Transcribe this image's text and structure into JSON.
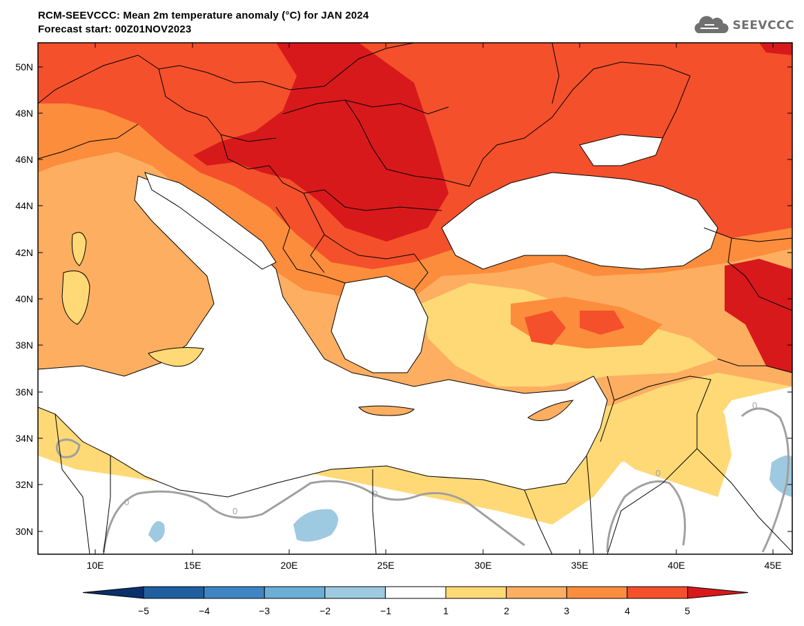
{
  "header": {
    "title": "RCM-SEEVCCC: Mean 2m temperature anomaly (°C) for JAN 2024",
    "subtitle": "Forecast start: 00Z01NOV2023",
    "logo_text": "SEEVCCC"
  },
  "map": {
    "lon_range": [
      7,
      46
    ],
    "lat_range": [
      29,
      51
    ],
    "lat_ticks": [
      "50N",
      "48N",
      "46N",
      "44N",
      "42N",
      "40N",
      "38N",
      "36N",
      "34N",
      "32N",
      "30N"
    ],
    "lon_ticks": [
      "10E",
      "15E",
      "20E",
      "25E",
      "30E",
      "35E",
      "40E",
      "45E"
    ],
    "contour_labels": [
      "0",
      "0",
      "0",
      "0",
      "0"
    ],
    "sea_color": "#ffffff",
    "border_color": "#000000",
    "zero_contour_color": "#a0a0a0"
  },
  "colorbar": {
    "tick_labels": [
      "−5",
      "−4",
      "−3",
      "−2",
      "−1",
      "1",
      "2",
      "3",
      "4",
      "5"
    ],
    "colors": [
      "#08306b",
      "#1f5fa0",
      "#3f85c3",
      "#6baed6",
      "#9ecae1",
      "#ffffff",
      "#fed976",
      "#fdae61",
      "#fc8d3c",
      "#f4502b",
      "#d7191c"
    ]
  }
}
